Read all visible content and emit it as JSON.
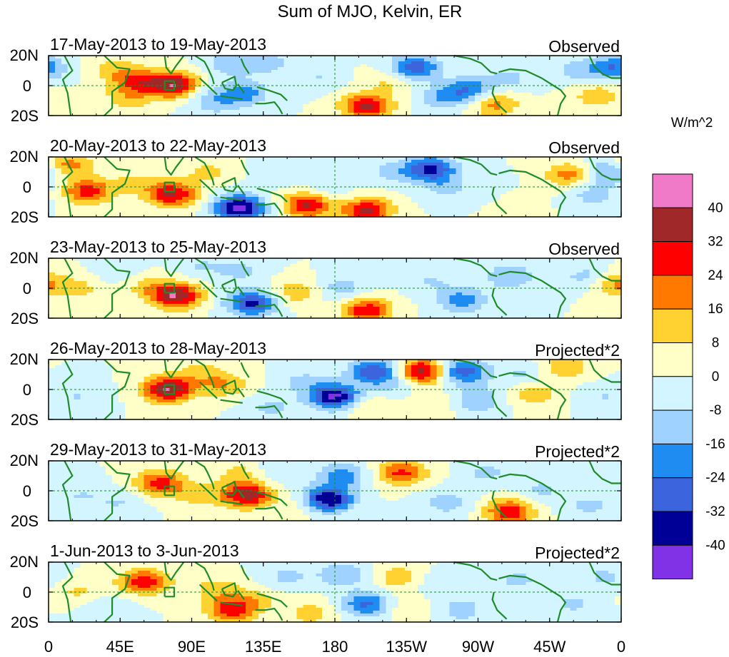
{
  "chart_data": {
    "type": "heatmap",
    "title": "Sum of MJO, Kelvin, ER",
    "colorbar": {
      "unit_label": "W/m^2",
      "levels": [
        40,
        32,
        24,
        16,
        8,
        0,
        -8,
        -16,
        -24,
        -32,
        -40
      ],
      "colors": [
        "#f07ac8",
        "#a02828",
        "#ff0000",
        "#ff7800",
        "#ffd232",
        "#ffffc8",
        "#d2f5ff",
        "#a0d2ff",
        "#1e8cf0",
        "#3c64dc",
        "#000096",
        "#8232e6"
      ]
    },
    "x_ticks": [
      "0",
      "45E",
      "90E",
      "135E",
      "180",
      "135W",
      "90W",
      "45W",
      "0"
    ],
    "y_ticks": [
      "20N",
      "0",
      "20S"
    ],
    "panels": [
      {
        "period": "17-May-2013 to 19-May-2013",
        "label": "Observed",
        "blobs": [
          [
            80,
            0,
            40
          ],
          [
            56,
            3,
            26
          ],
          [
            50,
            -9,
            12
          ],
          [
            40,
            12,
            10
          ],
          [
            123,
            -5,
            -20
          ],
          [
            115,
            15,
            -14
          ],
          [
            140,
            15,
            -10
          ],
          [
            105,
            -12,
            -10
          ],
          [
            200,
            -14,
            34
          ],
          [
            230,
            12,
            -30
          ],
          [
            247,
            -8,
            -14
          ],
          [
            265,
            -3,
            -24
          ],
          [
            280,
            -12,
            20
          ],
          [
            290,
            5,
            -10
          ],
          [
            330,
            10,
            -10
          ],
          [
            345,
            -7,
            14
          ],
          [
            355,
            12,
            -24
          ],
          [
            95,
            -5,
            -8
          ],
          [
            170,
            5,
            -8
          ],
          [
            215,
            3,
            10
          ]
        ]
      },
      {
        "period": "20-May-2013 to 22-May-2013",
        "label": "Observed",
        "blobs": [
          [
            12,
            15,
            20
          ],
          [
            25,
            -3,
            28
          ],
          [
            55,
            3,
            10
          ],
          [
            78,
            -5,
            34
          ],
          [
            120,
            -14,
            -44
          ],
          [
            145,
            10,
            -8
          ],
          [
            163,
            -12,
            34
          ],
          [
            200,
            -16,
            34
          ],
          [
            215,
            10,
            -10
          ],
          [
            240,
            12,
            -34
          ],
          [
            250,
            0,
            -10
          ],
          [
            280,
            -5,
            -8
          ],
          [
            290,
            -10,
            10
          ],
          [
            328,
            8,
            20
          ],
          [
            342,
            -5,
            -12
          ],
          [
            352,
            10,
            -20
          ],
          [
            100,
            10,
            10
          ],
          [
            175,
            -3,
            -8
          ]
        ]
      },
      {
        "period": "23-May-2013 to 25-May-2013",
        "label": "Observed",
        "blobs": [
          [
            80,
            -5,
            40
          ],
          [
            60,
            2,
            10
          ],
          [
            128,
            -10,
            -34
          ],
          [
            120,
            12,
            -10
          ],
          [
            95,
            15,
            -8
          ],
          [
            155,
            -3,
            14
          ],
          [
            185,
            0,
            -12
          ],
          [
            200,
            -15,
            30
          ],
          [
            240,
            5,
            -8
          ],
          [
            260,
            -8,
            -20
          ],
          [
            290,
            8,
            -16
          ],
          [
            340,
            7,
            -14
          ],
          [
            355,
            3,
            20
          ],
          [
            20,
            0,
            10
          ],
          [
            45,
            10,
            -8
          ]
        ]
      },
      {
        "period": "26-May-2013 to 28-May-2013",
        "label": "Projected*2",
        "blobs": [
          [
            75,
            0,
            40
          ],
          [
            110,
            3,
            16
          ],
          [
            95,
            12,
            10
          ],
          [
            180,
            -5,
            -42
          ],
          [
            205,
            12,
            -32
          ],
          [
            235,
            12,
            38
          ],
          [
            260,
            12,
            -30
          ],
          [
            270,
            -7,
            -16
          ],
          [
            298,
            10,
            -10
          ],
          [
            305,
            -3,
            14
          ],
          [
            325,
            15,
            16
          ],
          [
            350,
            -5,
            -8
          ],
          [
            20,
            -5,
            -8
          ],
          [
            140,
            -12,
            -10
          ],
          [
            160,
            5,
            -10
          ],
          [
            200,
            -12,
            10
          ],
          [
            240,
            -10,
            8
          ],
          [
            220,
            2,
            -8
          ]
        ]
      },
      {
        "period": "29-May-2013 to 31-May-2013",
        "label": "Projected*2",
        "blobs": [
          [
            70,
            5,
            28
          ],
          [
            95,
            -3,
            12
          ],
          [
            125,
            -3,
            36
          ],
          [
            120,
            12,
            10
          ],
          [
            145,
            12,
            -8
          ],
          [
            175,
            -6,
            -42
          ],
          [
            185,
            10,
            -20
          ],
          [
            222,
            12,
            26
          ],
          [
            250,
            -8,
            -12
          ],
          [
            275,
            12,
            -10
          ],
          [
            290,
            -14,
            30
          ],
          [
            310,
            0,
            -10
          ],
          [
            340,
            -10,
            -10
          ],
          [
            20,
            -3,
            -8
          ],
          [
            45,
            -8,
            -8
          ],
          [
            160,
            -10,
            8
          ]
        ]
      },
      {
        "period": "1-Jun-2013 to 3-Jun-2013",
        "label": "Projected*2",
        "blobs": [
          [
            60,
            7,
            30
          ],
          [
            105,
            2,
            12
          ],
          [
            115,
            -12,
            28
          ],
          [
            130,
            -5,
            10
          ],
          [
            150,
            10,
            -10
          ],
          [
            165,
            -14,
            12
          ],
          [
            200,
            -8,
            -26
          ],
          [
            185,
            12,
            -16
          ],
          [
            220,
            10,
            14
          ],
          [
            225,
            -10,
            8
          ],
          [
            245,
            5,
            -8
          ],
          [
            260,
            -12,
            -12
          ],
          [
            295,
            8,
            -10
          ],
          [
            330,
            -8,
            -10
          ],
          [
            350,
            10,
            -10
          ],
          [
            20,
            0,
            10
          ],
          [
            35,
            -10,
            -8
          ]
        ]
      }
    ]
  }
}
